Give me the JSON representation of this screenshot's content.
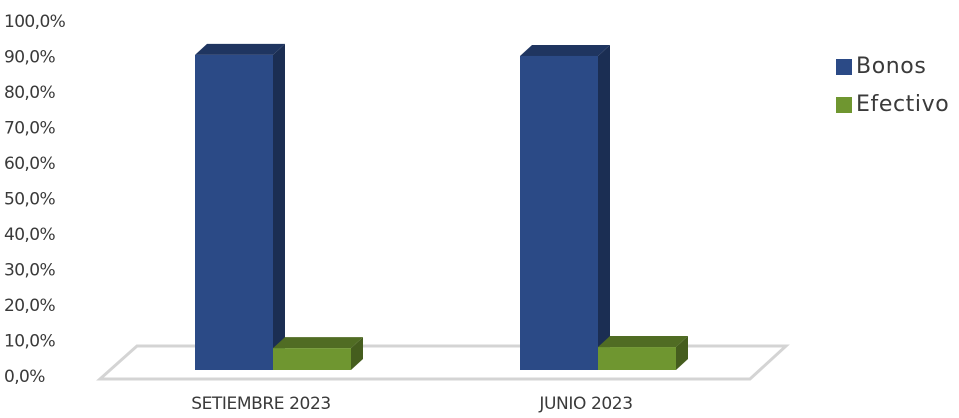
{
  "chart_data": {
    "type": "bar",
    "categories": [
      "SETIEMBRE 2023",
      "JUNIO 2023"
    ],
    "series": [
      {
        "name": "Bonos",
        "values": [
          91.3,
          91.0
        ],
        "color": "#2b4a86"
      },
      {
        "name": "Efectivo",
        "values": [
          8.7,
          9.0
        ],
        "color": "#6f9630"
      }
    ],
    "yticks": [
      "0,0%",
      "10,0%",
      "20,0%",
      "30,0%",
      "40,0%",
      "50,0%",
      "60,0%",
      "70,0%",
      "80,0%",
      "90,0%",
      "100,0%"
    ],
    "ylim": [
      0,
      100
    ],
    "legend_position": "right",
    "grid": false,
    "style": "3d-column"
  }
}
